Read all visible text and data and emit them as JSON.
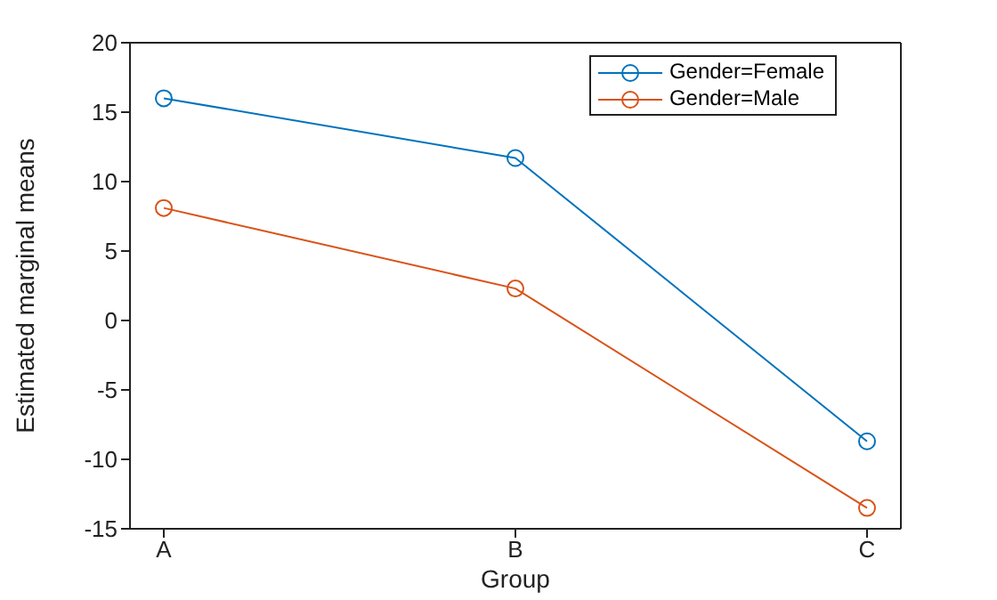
{
  "chart_data": {
    "type": "line",
    "xlabel": "Group",
    "ylabel": "Estimated marginal means",
    "categories": [
      "A",
      "B",
      "C"
    ],
    "series": [
      {
        "name": "Gender=Female",
        "color": "#0072bd",
        "values": [
          16,
          11.7,
          -8.7
        ]
      },
      {
        "name": "Gender=Male",
        "color": "#d95319",
        "values": [
          8.1,
          2.3,
          -13.5
        ]
      }
    ],
    "ylim": [
      -15,
      20
    ],
    "yticks": [
      -15,
      -10,
      -5,
      0,
      5,
      10,
      15,
      20
    ],
    "marker": "circle",
    "line_style": "solid",
    "legend": "top right",
    "grid": false
  }
}
